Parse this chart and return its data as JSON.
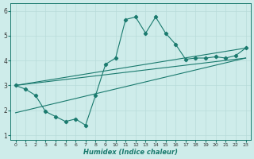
{
  "xlabel": "Humidex (Indice chaleur)",
  "bg_color": "#ceecea",
  "grid_color": "#b8dbd9",
  "line_color": "#1a7a6e",
  "x_data": [
    0,
    1,
    2,
    3,
    4,
    5,
    6,
    7,
    8,
    9,
    10,
    11,
    12,
    13,
    14,
    15,
    16,
    17,
    18,
    19,
    20,
    21,
    22,
    23
  ],
  "y_main": [
    3.0,
    2.85,
    2.6,
    1.95,
    1.75,
    1.55,
    1.65,
    1.4,
    2.6,
    3.85,
    4.1,
    5.65,
    5.75,
    5.1,
    5.75,
    5.1,
    4.65,
    4.05,
    4.1,
    4.1,
    4.15,
    4.1,
    4.2,
    4.5
  ],
  "trend_lines": [
    {
      "x0": 0,
      "y0": 3.0,
      "x1": 23,
      "y1": 4.5
    },
    {
      "x0": 0,
      "y0": 3.0,
      "x1": 23,
      "y1": 4.1
    },
    {
      "x0": 0,
      "y0": 1.9,
      "x1": 23,
      "y1": 4.1
    }
  ],
  "ylim": [
    0.8,
    6.3
  ],
  "xlim": [
    -0.5,
    23.5
  ],
  "yticks": [
    1,
    2,
    3,
    4,
    5,
    6
  ],
  "xticks": [
    0,
    1,
    2,
    3,
    4,
    5,
    6,
    7,
    8,
    9,
    10,
    11,
    12,
    13,
    14,
    15,
    16,
    17,
    18,
    19,
    20,
    21,
    22,
    23
  ]
}
